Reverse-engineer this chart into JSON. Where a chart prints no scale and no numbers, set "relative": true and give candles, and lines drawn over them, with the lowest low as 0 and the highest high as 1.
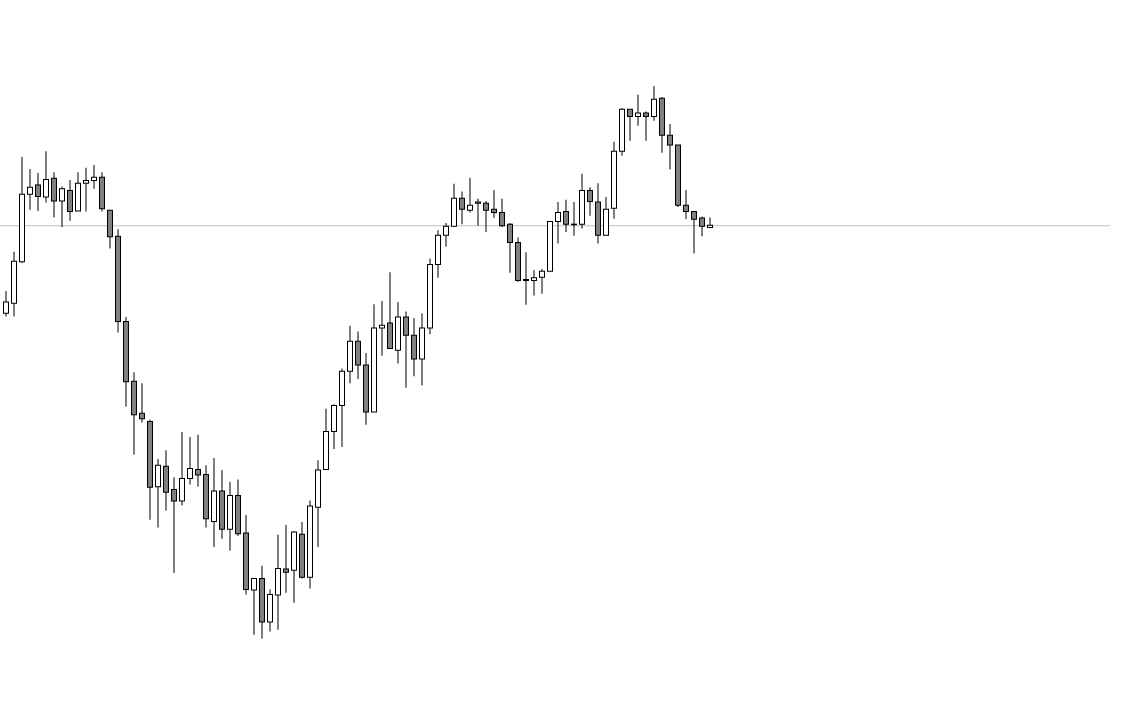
{
  "chart_data": {
    "type": "candlestick",
    "relative": true,
    "categories": [
      null,
      null,
      null,
      null,
      null,
      null,
      null,
      null,
      null,
      null,
      null,
      null,
      null,
      null,
      null,
      null,
      null,
      null,
      null,
      null,
      null,
      null,
      null,
      null,
      null,
      null,
      null,
      null,
      null,
      null,
      null,
      null,
      null,
      null,
      null,
      null,
      null,
      null,
      null,
      null,
      null,
      null,
      null,
      null,
      null,
      null,
      null,
      null,
      null,
      null,
      null,
      null,
      null,
      null,
      null,
      null,
      null,
      null,
      null,
      null,
      null,
      null,
      null,
      null,
      null,
      null,
      null,
      null,
      null,
      null,
      null,
      null,
      null,
      null,
      null,
      null,
      null,
      null,
      null,
      null,
      null,
      null,
      null,
      null,
      null,
      null,
      null,
      null,
      null
    ],
    "ohlc": [
      [
        0.589,
        0.629,
        0.583,
        0.609
      ],
      [
        0.607,
        0.7,
        0.583,
        0.683
      ],
      [
        0.682,
        0.872,
        0.68,
        0.804
      ],
      [
        0.804,
        0.85,
        0.776,
        0.817
      ],
      [
        0.821,
        0.843,
        0.774,
        0.8
      ],
      [
        0.799,
        0.882,
        0.789,
        0.831
      ],
      [
        0.833,
        0.844,
        0.762,
        0.792
      ],
      [
        0.792,
        0.818,
        0.745,
        0.814
      ],
      [
        0.811,
        0.83,
        0.756,
        0.773
      ],
      [
        0.774,
        0.844,
        0.774,
        0.824
      ],
      [
        0.824,
        0.852,
        0.773,
        0.829
      ],
      [
        0.829,
        0.857,
        0.814,
        0.835
      ],
      [
        0.835,
        0.844,
        0.773,
        0.778
      ],
      [
        0.775,
        0.775,
        0.706,
        0.727
      ],
      [
        0.728,
        0.741,
        0.554,
        0.574
      ],
      [
        0.574,
        0.582,
        0.42,
        0.465
      ],
      [
        0.466,
        0.482,
        0.333,
        0.405
      ],
      [
        0.408,
        0.462,
        0.391,
        0.398
      ],
      [
        0.393,
        0.396,
        0.215,
        0.274
      ],
      [
        0.275,
        0.325,
        0.201,
        0.314
      ],
      [
        0.312,
        0.341,
        0.232,
        0.265
      ],
      [
        0.27,
        0.292,
        0.119,
        0.249
      ],
      [
        0.249,
        0.374,
        0.241,
        0.29
      ],
      [
        0.29,
        0.365,
        0.279,
        0.308
      ],
      [
        0.306,
        0.369,
        0.275,
        0.296
      ],
      [
        0.297,
        0.314,
        0.201,
        0.217
      ],
      [
        0.212,
        0.327,
        0.166,
        0.267
      ],
      [
        0.267,
        0.305,
        0.181,
        0.198
      ],
      [
        0.198,
        0.284,
        0.159,
        0.259
      ],
      [
        0.259,
        0.288,
        0.186,
        0.19
      ],
      [
        0.191,
        0.224,
        0.08,
        0.089
      ],
      [
        0.088,
        0.109,
        0.007,
        0.109
      ],
      [
        0.109,
        0.132,
        0.0,
        0.03
      ],
      [
        0.03,
        0.089,
        0.013,
        0.08
      ],
      [
        0.079,
        0.188,
        0.016,
        0.127
      ],
      [
        0.126,
        0.206,
        0.083,
        0.12
      ],
      [
        0.124,
        0.194,
        0.065,
        0.193
      ],
      [
        0.189,
        0.211,
        0.109,
        0.111
      ],
      [
        0.111,
        0.25,
        0.091,
        0.24
      ],
      [
        0.238,
        0.323,
        0.166,
        0.305
      ],
      [
        0.306,
        0.416,
        0.306,
        0.375
      ],
      [
        0.375,
        0.424,
        0.343,
        0.422
      ],
      [
        0.422,
        0.489,
        0.347,
        0.484
      ],
      [
        0.484,
        0.566,
        0.462,
        0.538
      ],
      [
        0.538,
        0.556,
        0.47,
        0.495
      ],
      [
        0.495,
        0.517,
        0.387,
        0.41
      ],
      [
        0.41,
        0.605,
        0.41,
        0.562
      ],
      [
        0.562,
        0.611,
        0.512,
        0.567
      ],
      [
        0.571,
        0.663,
        0.524,
        0.525
      ],
      [
        0.522,
        0.609,
        0.498,
        0.582
      ],
      [
        0.582,
        0.592,
        0.454,
        0.549
      ],
      [
        0.549,
        0.58,
        0.475,
        0.506
      ],
      [
        0.506,
        0.589,
        0.458,
        0.562
      ],
      [
        0.562,
        0.688,
        0.551,
        0.677
      ],
      [
        0.677,
        0.739,
        0.653,
        0.73
      ],
      [
        0.73,
        0.752,
        0.709,
        0.746
      ],
      [
        0.746,
        0.823,
        0.746,
        0.797
      ],
      [
        0.797,
        0.809,
        0.75,
        0.777
      ],
      [
        0.775,
        0.834,
        0.771,
        0.784
      ],
      [
        0.788,
        0.796,
        0.747,
        0.79
      ],
      [
        0.788,
        0.792,
        0.736,
        0.775
      ],
      [
        0.777,
        0.812,
        0.761,
        0.771
      ],
      [
        0.771,
        0.796,
        0.745,
        0.747
      ],
      [
        0.75,
        0.752,
        0.662,
        0.717
      ],
      [
        0.717,
        0.726,
        0.646,
        0.648
      ],
      [
        0.65,
        0.699,
        0.604,
        0.648
      ],
      [
        0.648,
        0.667,
        0.621,
        0.653
      ],
      [
        0.654,
        0.669,
        0.624,
        0.665
      ],
      [
        0.665,
        0.755,
        0.665,
        0.755
      ],
      [
        0.755,
        0.79,
        0.715,
        0.771
      ],
      [
        0.773,
        0.794,
        0.736,
        0.75
      ],
      [
        0.75,
        0.79,
        0.729,
        0.749
      ],
      [
        0.75,
        0.841,
        0.742,
        0.811
      ],
      [
        0.811,
        0.817,
        0.765,
        0.791
      ],
      [
        0.79,
        0.824,
        0.715,
        0.73
      ],
      [
        0.73,
        0.799,
        0.73,
        0.777
      ],
      [
        0.779,
        0.899,
        0.76,
        0.882
      ],
      [
        0.882,
        0.96,
        0.874,
        0.958
      ],
      [
        0.958,
        0.958,
        0.901,
        0.945
      ],
      [
        0.945,
        0.984,
        0.928,
        0.951
      ],
      [
        0.951,
        0.954,
        0.901,
        0.945
      ],
      [
        0.945,
        1.0,
        0.937,
        0.976
      ],
      [
        0.978,
        0.98,
        0.879,
        0.911
      ],
      [
        0.911,
        0.931,
        0.849,
        0.893
      ],
      [
        0.893,
        0.893,
        0.781,
        0.784
      ],
      [
        0.784,
        0.812,
        0.759,
        0.773
      ],
      [
        0.773,
        0.773,
        0.697,
        0.759
      ],
      [
        0.761,
        0.764,
        0.728,
        0.746
      ],
      [
        0.744,
        0.762,
        0.744,
        0.748
      ]
    ],
    "ref_lines": [
      {
        "axis": "y",
        "value": 0.747,
        "color": "#c0c0c0"
      }
    ]
  }
}
